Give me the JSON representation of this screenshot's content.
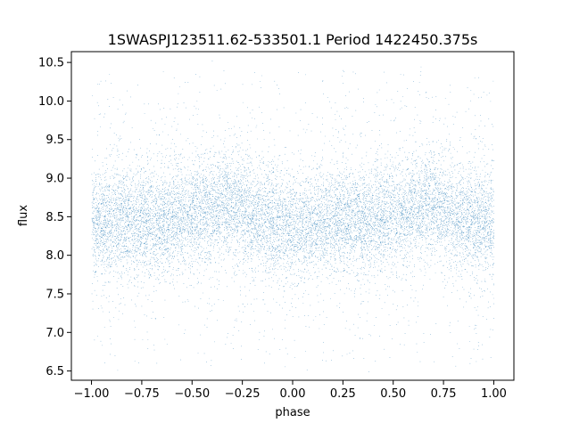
{
  "chart_data": {
    "type": "scatter",
    "title": "1SWASPJ123511.62-533501.1 Period 1422450.375s",
    "xlabel": "phase",
    "ylabel": "flux",
    "xlim": [
      -1.1,
      1.1
    ],
    "ylim": [
      6.38,
      10.64
    ],
    "x_ticks": [
      -1.0,
      -0.75,
      -0.5,
      -0.25,
      0.0,
      0.25,
      0.5,
      0.75,
      1.0
    ],
    "x_tick_labels": [
      "−1.00",
      "−0.75",
      "−0.50",
      "−0.25",
      "0.00",
      "0.25",
      "0.50",
      "0.75",
      "1.00"
    ],
    "y_ticks": [
      6.5,
      7.0,
      7.5,
      8.0,
      8.5,
      9.0,
      9.5,
      10.0,
      10.5
    ],
    "y_tick_labels": [
      "6.5",
      "7.0",
      "7.5",
      "8.0",
      "8.5",
      "9.0",
      "9.5",
      "10.0",
      "10.5"
    ],
    "grid": false,
    "legend": "none",
    "point_color": "#1f77b4",
    "series": [
      {
        "x_range": [
          -1.0,
          1.0
        ],
        "baseline_flux_by_phase": {
          "x": [
            -1.0,
            -0.75,
            -0.5,
            -0.35,
            -0.3,
            -0.2,
            0.0,
            0.1,
            0.25,
            0.5,
            0.65,
            0.7,
            0.8,
            1.0
          ],
          "y": [
            8.4,
            8.45,
            8.5,
            8.65,
            8.7,
            8.5,
            8.35,
            8.4,
            8.45,
            8.5,
            8.65,
            8.7,
            8.5,
            8.4
          ]
        },
        "typical_scatter": 0.32,
        "outlier_y_range": [
          6.6,
          10.4
        ]
      }
    ]
  }
}
